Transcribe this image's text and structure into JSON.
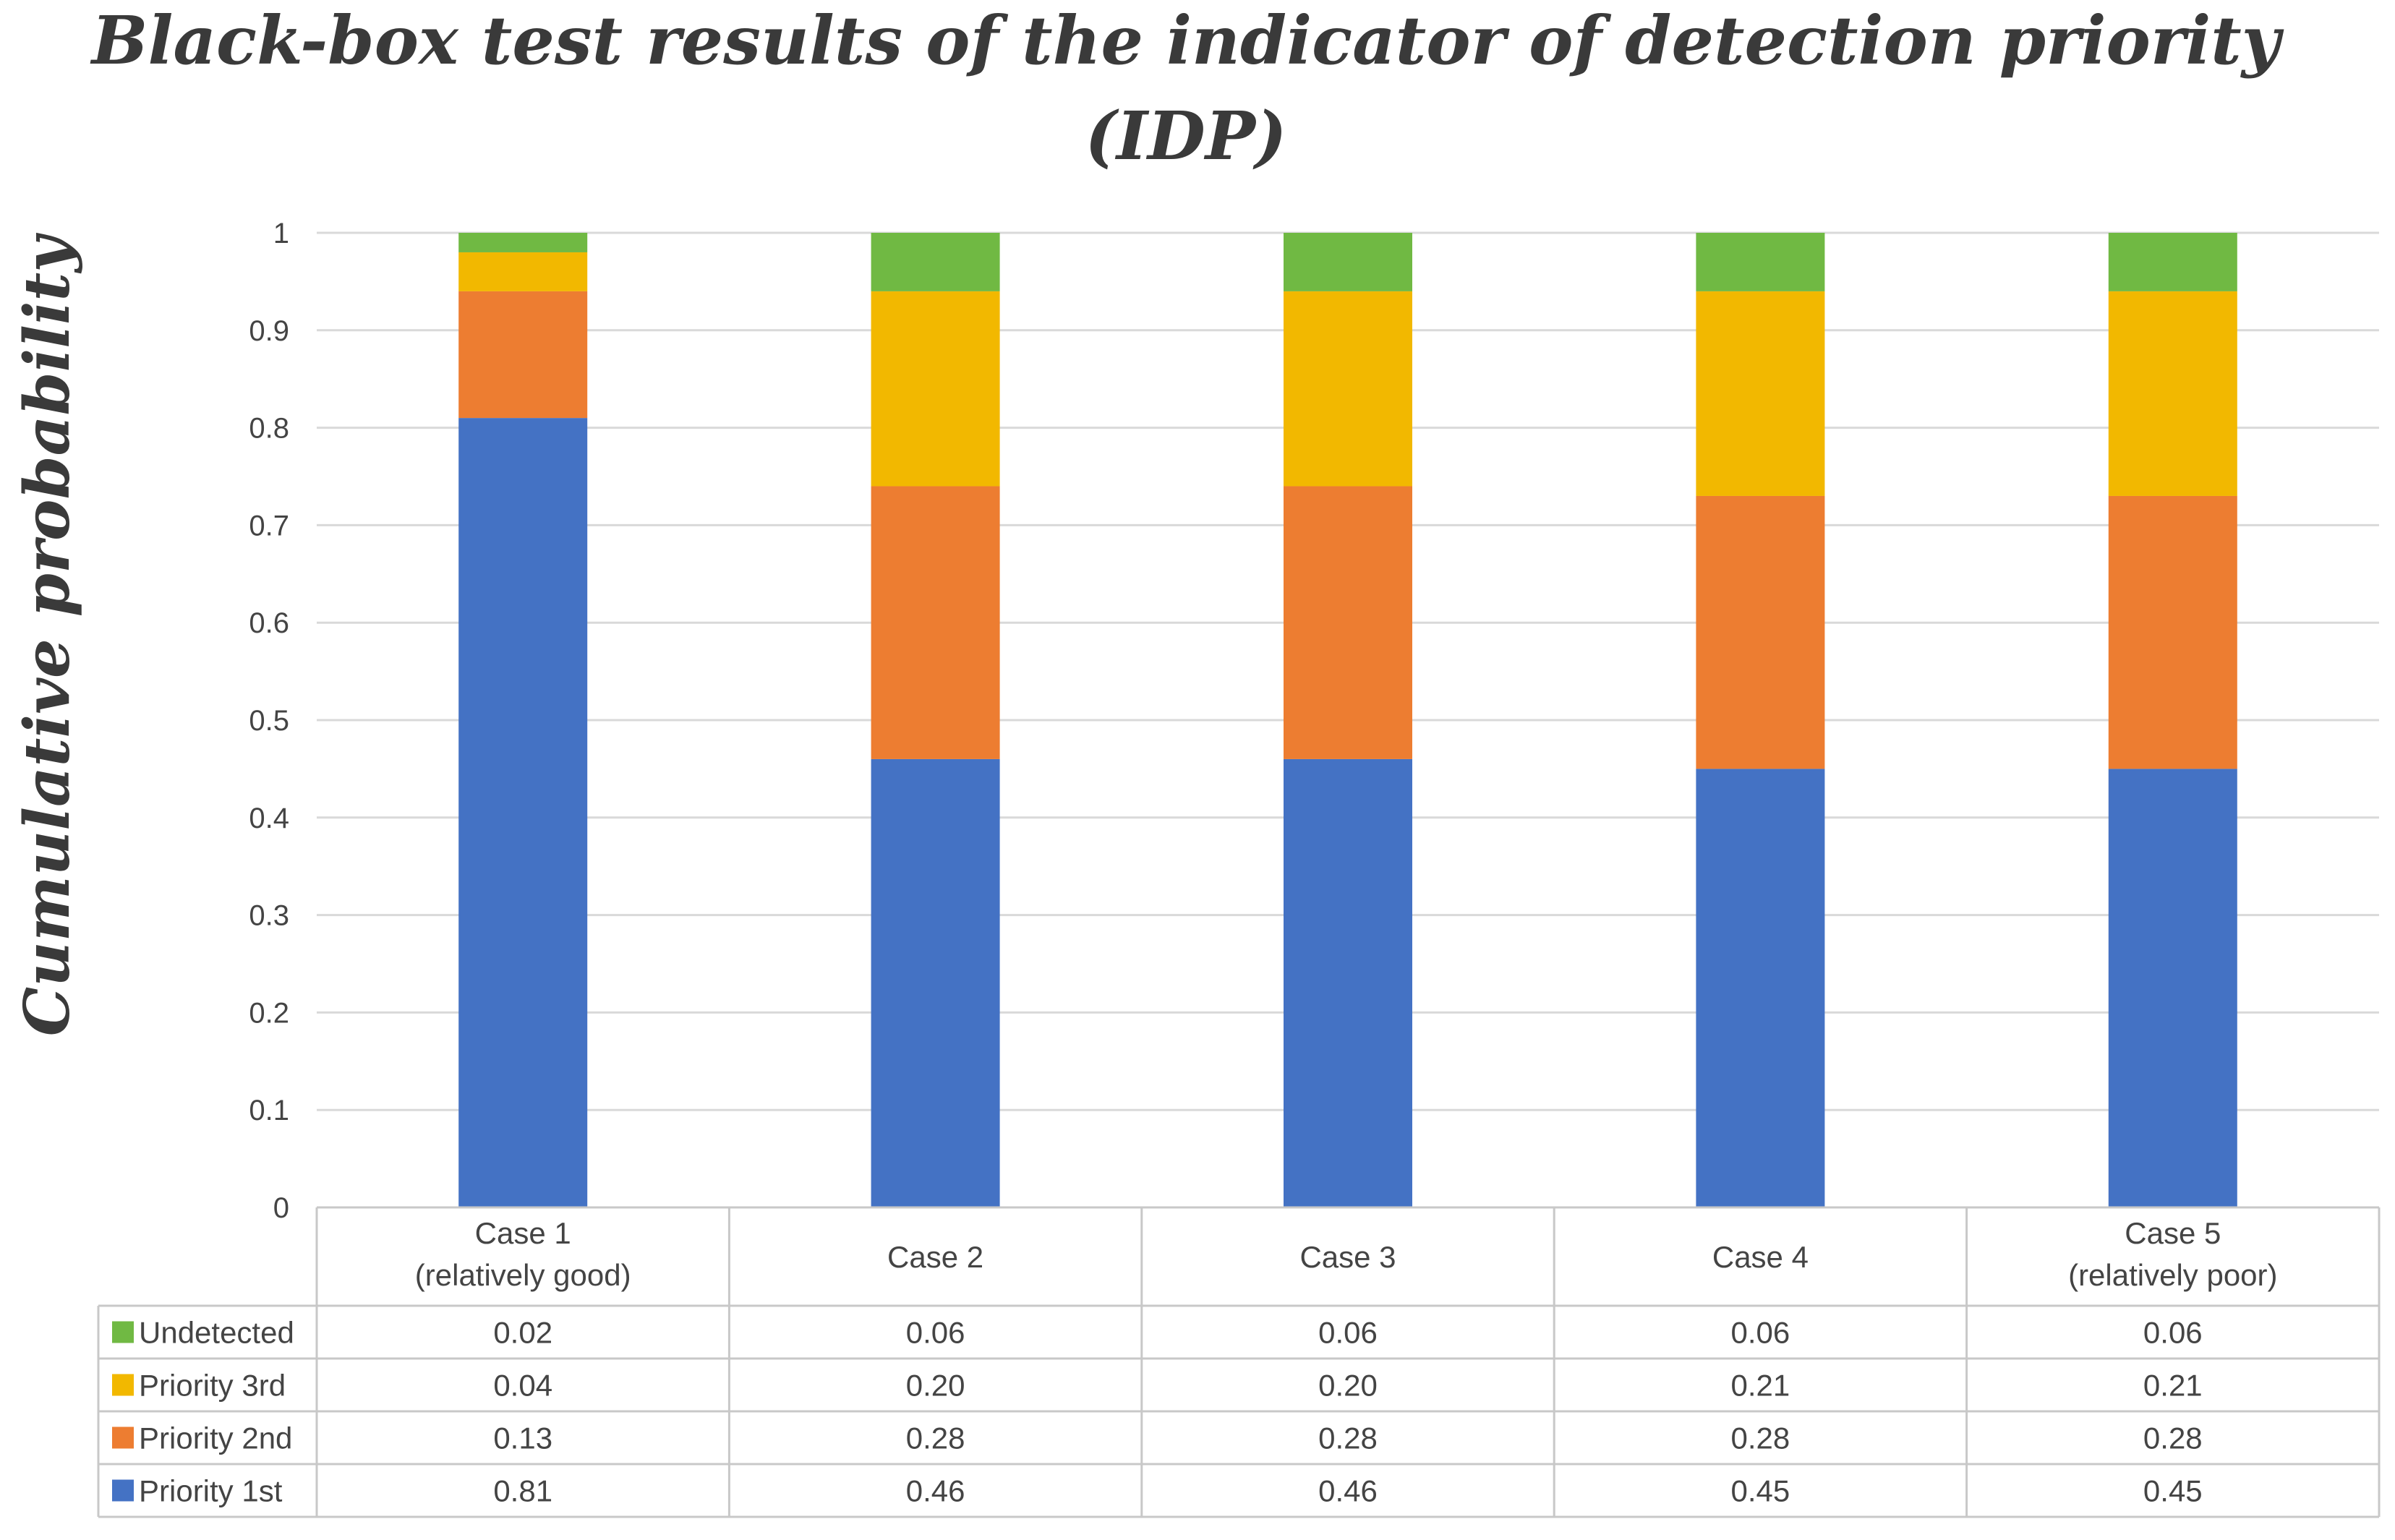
{
  "chart_data": {
    "type": "bar",
    "stacked": true,
    "title_line1": "Black-box test results of the indicator of detection priority",
    "title_line2": "(IDP)",
    "ylabel": "Cumulative probability",
    "xlabel": "",
    "ylim": [
      0,
      1
    ],
    "yticks": [
      "0",
      "0.1",
      "0.2",
      "0.3",
      "0.4",
      "0.5",
      "0.6",
      "0.7",
      "0.8",
      "0.9",
      "1"
    ],
    "grid": true,
    "categories": [
      [
        "Case 1",
        "(relatively good)"
      ],
      [
        "Case 2"
      ],
      [
        "Case 3"
      ],
      [
        "Case 4"
      ],
      [
        "Case 5",
        "(relatively poor)"
      ]
    ],
    "series": [
      {
        "name": "Priority 1st",
        "color": "#4472C4",
        "values": [
          0.81,
          0.46,
          0.46,
          0.45,
          0.45
        ],
        "labels": [
          "0.81",
          "0.46",
          "0.46",
          "0.45",
          "0.45"
        ]
      },
      {
        "name": "Priority 2nd",
        "color": "#ED7D31",
        "values": [
          0.13,
          0.28,
          0.28,
          0.28,
          0.28
        ],
        "labels": [
          "0.13",
          "0.28",
          "0.28",
          "0.28",
          "0.28"
        ]
      },
      {
        "name": "Priority 3rd",
        "color": "#F2B800",
        "values": [
          0.04,
          0.2,
          0.2,
          0.21,
          0.21
        ],
        "labels": [
          "0.04",
          "0.20",
          "0.20",
          "0.21",
          "0.21"
        ]
      },
      {
        "name": "Undetected",
        "color": "#70B943",
        "values": [
          0.02,
          0.06,
          0.06,
          0.06,
          0.06
        ],
        "labels": [
          "0.02",
          "0.06",
          "0.06",
          "0.06",
          "0.06"
        ]
      }
    ],
    "table_row_order": [
      "Undetected",
      "Priority 3rd",
      "Priority 2nd",
      "Priority 1st"
    ]
  }
}
